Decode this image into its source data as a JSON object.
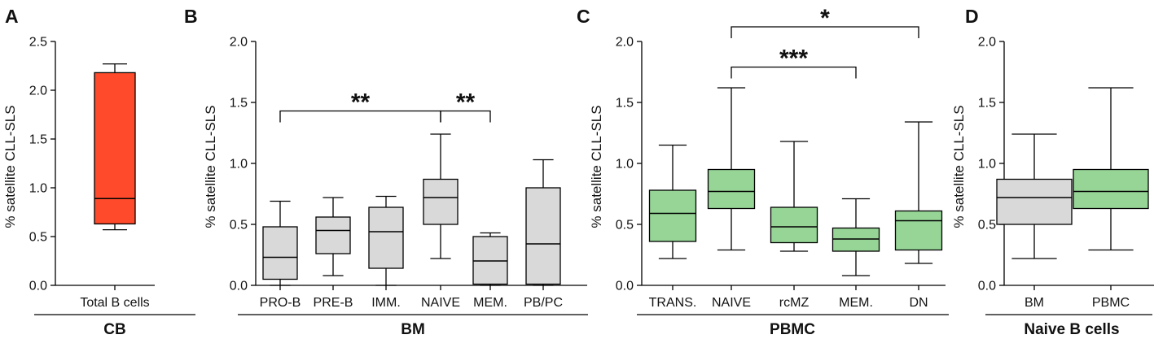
{
  "chart_data": [
    {
      "type": "box",
      "panel": "A",
      "group_label": "CB",
      "ylabel": "% satellite CLL-SLS",
      "ylim": [
        0,
        2.5
      ],
      "yticks": [
        0.0,
        0.5,
        1.0,
        1.5,
        2.0,
        2.5
      ],
      "tick_labels": [
        "0.0",
        "0.5",
        "1.0",
        "1.5",
        "2.0",
        "2.5"
      ],
      "box_color": "#ff4b2b",
      "categories": [
        "Total B cells"
      ],
      "boxes": [
        {
          "min": 0.57,
          "q1": 0.63,
          "median": 0.89,
          "q3": 2.18,
          "max": 2.27
        }
      ],
      "brackets": []
    },
    {
      "type": "box",
      "panel": "B",
      "group_label": "BM",
      "ylabel": "% satellite CLL-SLS",
      "ylim": [
        0,
        2.0
      ],
      "yticks": [
        0.0,
        0.5,
        1.0,
        1.5,
        2.0
      ],
      "tick_labels": [
        "0.0",
        "0.5",
        "1.0",
        "1.5",
        "2.0"
      ],
      "box_color": "#d9d9d9",
      "categories": [
        "PRO-B",
        "PRE-B",
        "IMM.",
        "NAIVE",
        "MEM.",
        "PB/PC"
      ],
      "boxes": [
        {
          "min": 0.0,
          "q1": 0.05,
          "median": 0.23,
          "q3": 0.48,
          "max": 0.69
        },
        {
          "min": 0.08,
          "q1": 0.26,
          "median": 0.45,
          "q3": 0.56,
          "max": 0.72
        },
        {
          "min": 0.0,
          "q1": 0.14,
          "median": 0.44,
          "q3": 0.64,
          "max": 0.73
        },
        {
          "min": 0.22,
          "q1": 0.5,
          "median": 0.72,
          "q3": 0.87,
          "max": 1.24
        },
        {
          "min": 0.0,
          "q1": 0.01,
          "median": 0.2,
          "q3": 0.4,
          "max": 0.43
        },
        {
          "min": 0.0,
          "q1": 0.01,
          "median": 0.34,
          "q3": 0.8,
          "max": 1.03
        }
      ],
      "brackets": [
        {
          "from": 0,
          "to": 3,
          "y": 1.43,
          "label": "**"
        },
        {
          "from": 3,
          "to": 4,
          "y": 1.43,
          "label": "**"
        }
      ]
    },
    {
      "type": "box",
      "panel": "C",
      "group_label": "PBMC",
      "ylabel": "% satellite CLL-SLS",
      "ylim": [
        0,
        2.0
      ],
      "yticks": [
        0.0,
        0.5,
        1.0,
        1.5,
        2.0
      ],
      "tick_labels": [
        "0.0",
        "0.5",
        "1.0",
        "1.5",
        "2.0"
      ],
      "box_color": "#96d596",
      "categories": [
        "TRANS.",
        "NAIVE",
        "rcMZ",
        "MEM.",
        "DN"
      ],
      "boxes": [
        {
          "min": 0.22,
          "q1": 0.36,
          "median": 0.59,
          "q3": 0.78,
          "max": 1.15
        },
        {
          "min": 0.29,
          "q1": 0.63,
          "median": 0.77,
          "q3": 0.95,
          "max": 1.62
        },
        {
          "min": 0.28,
          "q1": 0.35,
          "median": 0.48,
          "q3": 0.64,
          "max": 1.18
        },
        {
          "min": 0.08,
          "q1": 0.28,
          "median": 0.38,
          "q3": 0.47,
          "max": 0.71
        },
        {
          "min": 0.18,
          "q1": 0.29,
          "median": 0.53,
          "q3": 0.61,
          "max": 1.34
        }
      ],
      "brackets": [
        {
          "from": 1,
          "to": 3,
          "y": 1.79,
          "label": "***"
        },
        {
          "from": 1,
          "to": 4,
          "y": 2.12,
          "label": "*"
        }
      ]
    },
    {
      "type": "box",
      "panel": "D",
      "group_label": "Naive B cells",
      "ylabel": "% satellite CLL-SLS",
      "ylim": [
        0,
        2.0
      ],
      "yticks": [
        0.0,
        0.5,
        1.0,
        1.5,
        2.0
      ],
      "tick_labels": [
        "0.0",
        "0.5",
        "1.0",
        "1.5",
        "2.0"
      ],
      "box_colors": [
        "#d9d9d9",
        "#96d596"
      ],
      "categories": [
        "BM",
        "PBMC"
      ],
      "boxes": [
        {
          "min": 0.22,
          "q1": 0.5,
          "median": 0.72,
          "q3": 0.87,
          "max": 1.24
        },
        {
          "min": 0.29,
          "q1": 0.63,
          "median": 0.77,
          "q3": 0.95,
          "max": 1.62
        }
      ],
      "brackets": []
    }
  ]
}
